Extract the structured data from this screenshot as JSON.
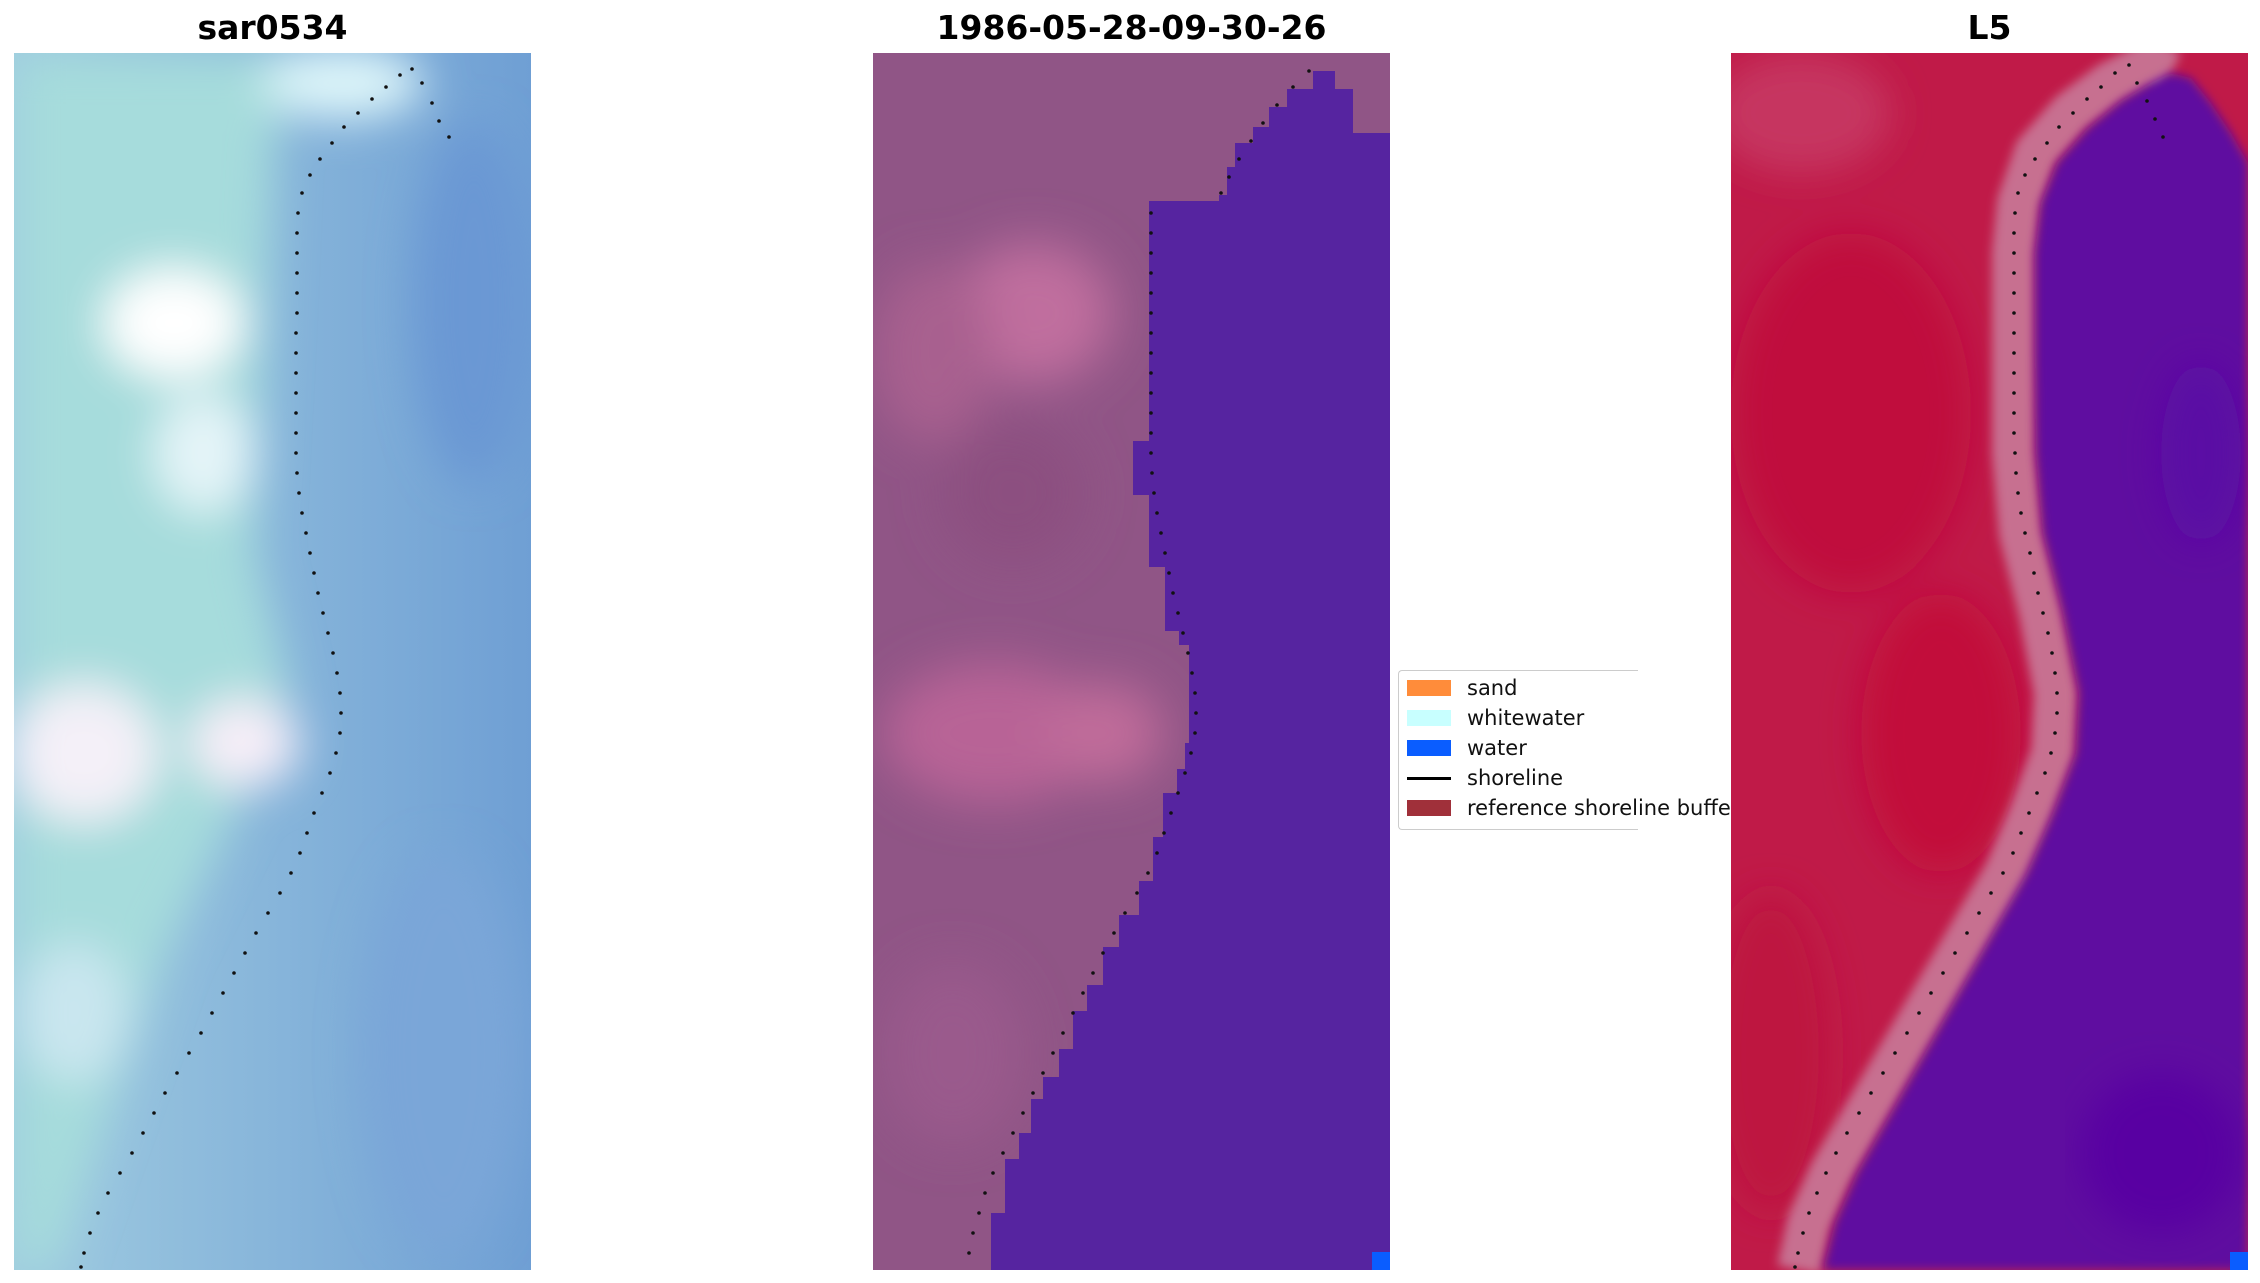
{
  "panels": [
    {
      "title": "sar0534"
    },
    {
      "title": "1986-05-28-09-30-26"
    },
    {
      "title": "L5"
    }
  ],
  "legend": {
    "items": [
      {
        "label": "sand",
        "kind": "patch",
        "color": "#ff8c3a"
      },
      {
        "label": "whitewater",
        "kind": "patch",
        "color": "#c8ffff"
      },
      {
        "label": "water",
        "kind": "patch",
        "color": "#0a5dff"
      },
      {
        "label": "shoreline",
        "kind": "line",
        "color": "#000000"
      },
      {
        "label": "reference shoreline buffer",
        "kind": "patch",
        "color": "#a0303a"
      }
    ]
  },
  "colors": {
    "water_class": "#5624a0",
    "rgb_land": "#9a5a90",
    "rgb_water": "#7aa6d6",
    "rgb_foam": "#a8dde0",
    "index_high": "#c0143c",
    "index_low": "#5e0aa0",
    "buffer": "#c7778f",
    "water_pixel": "#0a5dff"
  }
}
